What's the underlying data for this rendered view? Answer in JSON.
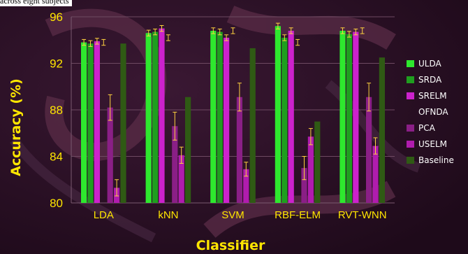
{
  "caption": "across eight subjects",
  "chart_data": {
    "type": "bar",
    "xlabel": "Classifier",
    "ylabel": "Accuracy (%)",
    "ylim": [
      80,
      96
    ],
    "yticks": [
      80,
      84,
      88,
      92,
      96
    ],
    "grid": true,
    "legend_position": "right",
    "categories": [
      "LDA",
      "kNN",
      "SVM",
      "RBF-ELM",
      "RVT-WNN"
    ],
    "series": [
      {
        "name": "ULDA",
        "color": "#2ee82e",
        "values": [
          93.8,
          94.6,
          94.8,
          95.2,
          94.8
        ],
        "errors": [
          0.25,
          0.25,
          0.25,
          0.25,
          0.25
        ]
      },
      {
        "name": "SRDA",
        "color": "#1f9e1f",
        "values": [
          93.7,
          94.7,
          94.7,
          94.2,
          94.5
        ],
        "errors": [
          0.25,
          0.25,
          0.25,
          0.25,
          0.25
        ]
      },
      {
        "name": "SRELM",
        "color": "#cc22cc",
        "values": [
          93.9,
          95.0,
          94.2,
          94.8,
          94.7
        ],
        "errors": [
          0.25,
          0.25,
          0.25,
          0.25,
          0.25
        ]
      },
      {
        "name": "OFNDA",
        "color": null,
        "values": [
          93.8,
          94.2,
          94.8,
          93.8,
          94.8
        ],
        "errors": [
          0.25,
          0.25,
          0.25,
          0.25,
          0.25
        ]
      },
      {
        "name": "PCA",
        "color": "#8a1f86",
        "values": [
          88.2,
          86.6,
          89.1,
          83.0,
          89.1
        ],
        "errors": [
          1.1,
          1.2,
          1.2,
          1.0,
          1.2
        ]
      },
      {
        "name": "USELM",
        "color": "#b01cae",
        "values": [
          81.3,
          84.1,
          82.9,
          85.7,
          84.9
        ],
        "errors": [
          0.7,
          0.7,
          0.6,
          0.7,
          0.7
        ]
      },
      {
        "name": "Baseline",
        "color": "#2f5a14",
        "values": [
          93.7,
          89.1,
          93.3,
          87.0,
          92.5
        ],
        "errors": null
      }
    ]
  }
}
